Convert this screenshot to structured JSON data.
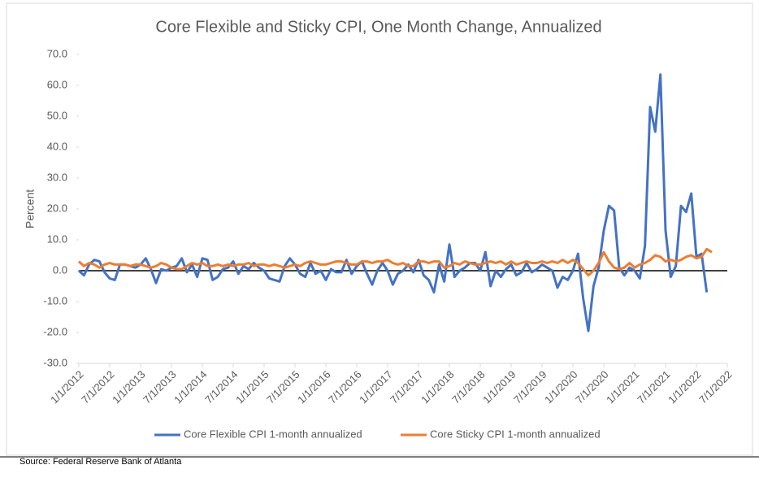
{
  "chart_data": {
    "type": "line",
    "title": "Core Flexible and Sticky CPI, One Month Change, Annualized",
    "y_label": "Percent",
    "source": "Source: Federal Reserve Bank of Atlanta",
    "categories": [
      "1/1/2012",
      null,
      null,
      null,
      null,
      null,
      "7/1/2012",
      null,
      null,
      null,
      null,
      null,
      "1/1/2013",
      null,
      null,
      null,
      null,
      null,
      "7/1/2013",
      null,
      null,
      null,
      null,
      null,
      "1/1/2014",
      null,
      null,
      null,
      null,
      null,
      "7/1/2014",
      null,
      null,
      null,
      null,
      null,
      "1/1/2015",
      null,
      null,
      null,
      null,
      null,
      "7/1/2015",
      null,
      null,
      null,
      null,
      null,
      "1/1/2016",
      null,
      null,
      null,
      null,
      null,
      "7/1/2016",
      null,
      null,
      null,
      null,
      null,
      "1/1/2017",
      null,
      null,
      null,
      null,
      null,
      "7/1/2017",
      null,
      null,
      null,
      null,
      null,
      "1/1/2018",
      null,
      null,
      null,
      null,
      null,
      "7/1/2018",
      null,
      null,
      null,
      null,
      null,
      "1/1/2019",
      null,
      null,
      null,
      null,
      null,
      "7/1/2019",
      null,
      null,
      null,
      null,
      null,
      "1/1/2020",
      null,
      null,
      null,
      null,
      null,
      "7/1/2020",
      null,
      null,
      null,
      null,
      null,
      "1/1/2021",
      null,
      null,
      null,
      null,
      null,
      "7/1/2021",
      null,
      null,
      null,
      null,
      null,
      "1/1/2022",
      null,
      null,
      null,
      null,
      null,
      "7/1/2022"
    ],
    "series": [
      {
        "name": "Core Flexible CPI 1-month annualized",
        "color": "#4472c4",
        "values": [
          0,
          -1.5,
          2,
          3.5,
          3,
          -0.5,
          -2.5,
          -3,
          2,
          2,
          1.5,
          1,
          2,
          4,
          0.5,
          -4,
          0.5,
          0,
          1,
          1.5,
          4,
          -0.5,
          2,
          -2,
          4,
          3.5,
          -3,
          -2,
          0.5,
          1,
          3,
          -1,
          1.5,
          0.5,
          2.5,
          1,
          0,
          -2.5,
          -3,
          -3.5,
          1.5,
          4,
          2,
          -1,
          -2,
          2.5,
          -1,
          0,
          -3,
          0.5,
          -0.5,
          -0.5,
          3.5,
          -1,
          1.5,
          3,
          -1,
          -4.5,
          0,
          2.5,
          0,
          -4.5,
          -1,
          0,
          2,
          -0.5,
          3.5,
          -1.5,
          -3,
          -7,
          2,
          -3.5,
          8.5,
          -2,
          0,
          1,
          2.5,
          2.5,
          0,
          6,
          -5,
          0,
          -2,
          0.5,
          2,
          -1.5,
          -0.5,
          2.5,
          -0.5,
          0.5,
          2,
          1,
          0,
          -5.5,
          -2,
          -3,
          0,
          5.5,
          -9,
          -19.5,
          -5,
          1,
          13,
          21,
          19.5,
          1,
          -1.5,
          1,
          0,
          -2.5,
          8,
          53,
          45,
          63.5,
          13,
          -2,
          1.5,
          21,
          19,
          25,
          4.5,
          5.5,
          -7,
          null,
          null,
          null,
          null
        ]
      },
      {
        "name": "Core Sticky CPI 1-month annualized",
        "color": "#ed7d31",
        "values": [
          3,
          1.5,
          2.5,
          2,
          1,
          2,
          2.5,
          2,
          2,
          2,
          1.5,
          2,
          2,
          1.5,
          1,
          1.5,
          2.5,
          2,
          1,
          0.5,
          0.5,
          1.5,
          2.5,
          2,
          2.5,
          1.5,
          1.5,
          2,
          1.5,
          2,
          1.5,
          2,
          2,
          2.5,
          1.5,
          2,
          2,
          1.5,
          2,
          1.5,
          1,
          1.5,
          2,
          1.5,
          2.5,
          3,
          2.5,
          2,
          2,
          2.5,
          3,
          3,
          2.5,
          2,
          2,
          3,
          3,
          2.5,
          3,
          3,
          3.5,
          2.5,
          2,
          2.5,
          1.5,
          1.5,
          3,
          3,
          2.5,
          3,
          3,
          1,
          1.5,
          2.5,
          2,
          3,
          2.5,
          2,
          2,
          2.5,
          3,
          2.5,
          3,
          2,
          3,
          2,
          2.5,
          3,
          2.5,
          2.5,
          3,
          2.5,
          3,
          2.5,
          3.5,
          2.5,
          3.5,
          2.5,
          0.5,
          -1.5,
          0,
          2.5,
          6,
          3,
          1,
          0.5,
          1,
          2.5,
          1,
          2,
          2.5,
          3.5,
          5,
          4.5,
          3,
          3.5,
          3,
          3.5,
          4.5,
          5,
          4,
          4.5,
          7,
          6,
          null,
          null,
          null
        ]
      }
    ],
    "ylim": [
      -30,
      70
    ],
    "yticks": [
      {
        "value": -30,
        "label": "-30.0"
      },
      {
        "value": -20,
        "label": "-20.0"
      },
      {
        "value": -10,
        "label": "-10.0"
      },
      {
        "value": 0,
        "label": "0.0"
      },
      {
        "value": 10,
        "label": "10.0"
      },
      {
        "value": 20,
        "label": "20.0"
      },
      {
        "value": 30,
        "label": "30.0"
      },
      {
        "value": 40,
        "label": "40.0"
      },
      {
        "value": 50,
        "label": "50.0"
      },
      {
        "value": 60,
        "label": "60.0"
      },
      {
        "value": 70,
        "label": "70.0"
      }
    ],
    "grid": false,
    "legend": "bottom"
  }
}
